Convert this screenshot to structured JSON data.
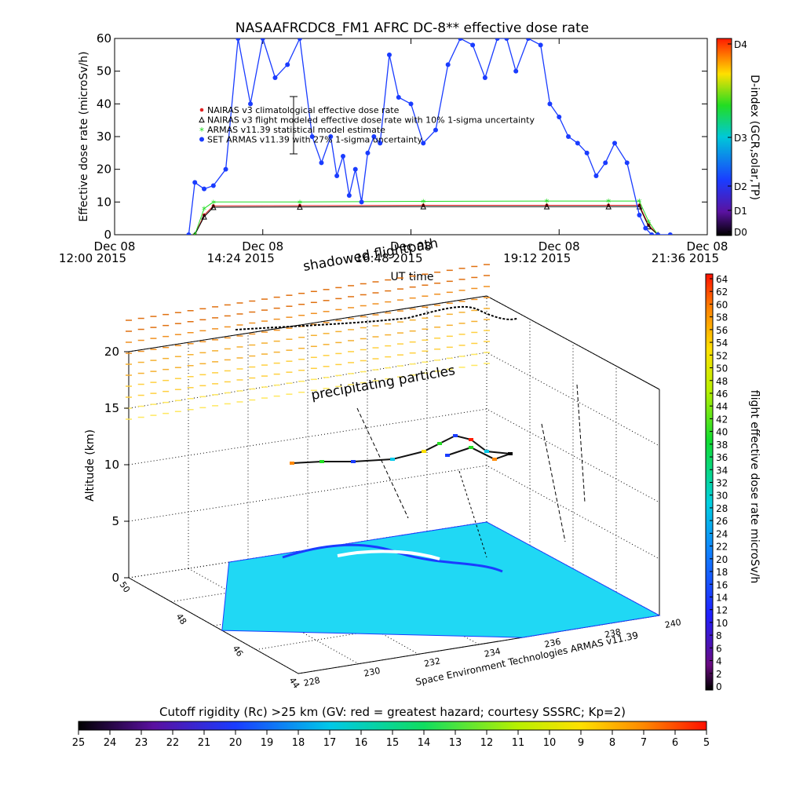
{
  "title": "NASAAFRCDC8_FM1 AFRC DC-8** effective dose rate",
  "footer_credit": "Space Environment Technologies ARMAS v11.39",
  "annotations": {
    "shadowed": "shadowed flightpath",
    "precipitating": "precipitating particles"
  },
  "chart_data": [
    {
      "type": "line",
      "panel": "time-series",
      "title": "NASAAFRCDC8_FM1 AFRC DC-8** effective dose rate",
      "xlabel": "UT time",
      "ylabel": "Effective dose rate (microSv/h)",
      "ylim": [
        0,
        60
      ],
      "yticks": [
        "0",
        "10",
        "20",
        "30",
        "40",
        "50",
        "60"
      ],
      "xticks": [
        {
          "h": 12.0,
          "l1": "Dec 08",
          "l2": "12:00 2015"
        },
        {
          "h": 14.4,
          "l1": "Dec 08",
          "l2": "14:24 2015"
        },
        {
          "h": 16.8,
          "l1": "Dec 08",
          "l2": "16:48 2015"
        },
        {
          "h": 19.2,
          "l1": "Dec 08",
          "l2": "19:12 2015"
        },
        {
          "h": 21.6,
          "l1": "Dec 08",
          "l2": "21:36 2015"
        }
      ],
      "xlim_hours": [
        12.0,
        21.6
      ],
      "legend": [
        "NAIRAS v3 climatological effective dose rate",
        "NAIRAS v3 flight modeled effective dose rate with 10% 1-sigma uncertainty",
        "ARMAS v11.39 statistical model estimate",
        "SET ARMAS v11.39 with 27% 1-sigma uncertainty"
      ],
      "series": [
        {
          "name": "NAIRAS v3 climatological effective dose rate",
          "color": "#e02020",
          "x": [
            13.3,
            13.45,
            13.6,
            15.0,
            17.0,
            19.0,
            20.0,
            20.5,
            20.65,
            20.8
          ],
          "y": [
            0,
            6,
            8.8,
            8.9,
            9.0,
            9.0,
            9.0,
            9.0,
            3,
            0
          ]
        },
        {
          "name": "NAIRAS v3 flight modeled effective dose rate with 10% 1-sigma uncertainty",
          "color": "#000000",
          "x": [
            13.3,
            13.45,
            13.6,
            15.0,
            17.0,
            19.0,
            20.0,
            20.5,
            20.65,
            20.8
          ],
          "y": [
            0,
            5.5,
            8.4,
            8.5,
            8.6,
            8.6,
            8.6,
            8.6,
            2.5,
            0
          ]
        },
        {
          "name": "ARMAS v11.39 statistical model estimate",
          "color": "#22dd22",
          "x": [
            13.3,
            13.45,
            13.6,
            15.0,
            17.0,
            19.0,
            20.0,
            20.5,
            20.65,
            20.8
          ],
          "y": [
            0,
            8,
            10,
            10,
            10.2,
            10.3,
            10.3,
            10.3,
            4,
            0
          ]
        },
        {
          "name": "SET ARMAS v11.39 with 27% 1-sigma uncertainty",
          "color": "#1a3cff",
          "x": [
            13.2,
            13.3,
            13.45,
            13.6,
            13.8,
            14.0,
            14.2,
            14.4,
            14.6,
            14.8,
            15.0,
            15.2,
            15.35,
            15.5,
            15.6,
            15.7,
            15.8,
            15.9,
            16.0,
            16.1,
            16.2,
            16.3,
            16.45,
            16.6,
            16.8,
            17.0,
            17.2,
            17.4,
            17.6,
            17.8,
            18.0,
            18.2,
            18.35,
            18.5,
            18.7,
            18.9,
            19.05,
            19.2,
            19.35,
            19.5,
            19.65,
            19.8,
            19.95,
            20.1,
            20.3,
            20.5,
            20.6,
            20.7,
            20.8,
            21.0
          ],
          "y": [
            0,
            16,
            14,
            15,
            20,
            60,
            40,
            60,
            48,
            52,
            60,
            30,
            22,
            30,
            18,
            24,
            12,
            20,
            10,
            25,
            30,
            28,
            55,
            42,
            40,
            28,
            32,
            52,
            60,
            58,
            48,
            62,
            60,
            50,
            62,
            58,
            40,
            36,
            30,
            28,
            25,
            18,
            22,
            28,
            22,
            6,
            2,
            0,
            0,
            0
          ]
        }
      ]
    },
    {
      "type": "scatter",
      "panel": "3d-flight-path",
      "zlabel": "Altitude (km)",
      "zticks": [
        "0",
        "5",
        "10",
        "15",
        "20"
      ],
      "xticks": [
        "228",
        "230",
        "232",
        "234",
        "236",
        "238",
        "240"
      ],
      "yticks": [
        "44",
        "46",
        "48",
        "50"
      ],
      "colorbar_right": {
        "label": "flight effective dose rate microSv/h",
        "ticks": [
          "0",
          "2",
          "4",
          "6",
          "8",
          "10",
          "12",
          "14",
          "16",
          "18",
          "20",
          "22",
          "24",
          "26",
          "28",
          "30",
          "32",
          "34",
          "36",
          "38",
          "40",
          "42",
          "44",
          "46",
          "48",
          "50",
          "52",
          "54",
          "56",
          "58",
          "60",
          "62",
          "64"
        ]
      },
      "colorbar_bottom": {
        "label": "Cutoff rigidity (Rc) >25 km (GV: red = greatest hazard; courtesy SSSRC; Kp=2)",
        "ticks": [
          "25",
          "24",
          "23",
          "22",
          "21",
          "20",
          "19",
          "18",
          "17",
          "16",
          "15",
          "14",
          "13",
          "12",
          "11",
          "10",
          "9",
          "8",
          "7",
          "6",
          "5"
        ]
      }
    }
  ],
  "dindex_colorbar": {
    "label": "D-index (GCR,solar,TP)",
    "ticks": [
      "D4",
      "D3",
      "D2",
      "D1",
      "D0"
    ]
  },
  "colors": {
    "nairas_clim": "#e02020",
    "nairas_flight": "#000000",
    "armas_model": "#22dd22",
    "set_armas": "#1a3cff",
    "ground": "#20d8f4"
  }
}
